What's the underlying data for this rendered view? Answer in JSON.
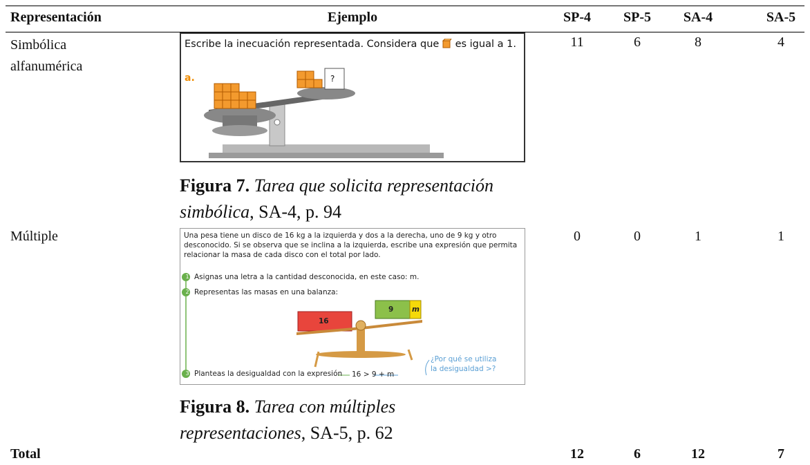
{
  "table": {
    "header": [
      "Representación",
      "Ejemplo",
      "SP-4",
      "SP-5",
      "SA-4",
      "SA-5"
    ],
    "rows": [
      {
        "representation": "Simbólica alfanumérica",
        "figure": {
          "prompt": "Escribe la inecuación representada. Considera que",
          "prompt_end": "es igual a 1.",
          "item": "a.",
          "unknown": "?"
        },
        "caption": {
          "label": "Figura 7.",
          "title": "Tarea que solicita representación simbólica",
          "source": ", SA-4, p. 94"
        },
        "counts": [
          11,
          6,
          8,
          4
        ]
      },
      {
        "representation": "Múltiple",
        "figure": {
          "statement": "Una pesa tiene un disco de 16 kg a la izquierda y dos a la derecha, uno de 9 kg y otro desconocido. Si se observa que se inclina a la izquierda, escribe una expresión que permita relacionar la masa de cada disco con el total por lado.",
          "steps": [
            {
              "number": "1",
              "text": "Asignas una letra a la cantidad desconocida, en este caso: m."
            },
            {
              "number": "2",
              "text": "Representas las masas en una balanza:"
            },
            {
              "number": "3",
              "text": "Planteas la desigualdad con la expresión"
            }
          ],
          "left_mass": "16",
          "right_mass": "9",
          "unknown_mass": "m",
          "expression": "16 > 9 + m",
          "note": "¿Por qué se utiliza la desigualdad >?"
        },
        "caption": {
          "label": "Figura 8.",
          "title": "Tarea con múltiples representaciones",
          "source": ", SA-5, p. 62"
        },
        "counts": [
          0,
          0,
          1,
          1
        ]
      }
    ],
    "total": {
      "label": "Total",
      "counts": [
        12,
        6,
        12,
        7
      ]
    }
  }
}
